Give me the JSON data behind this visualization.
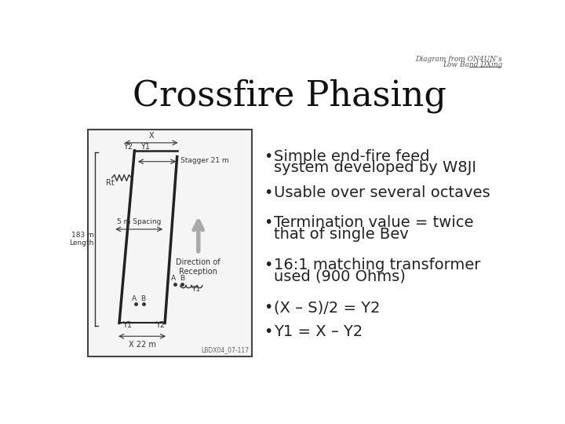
{
  "title": "Crossfire Phasing",
  "title_fontsize": 32,
  "title_font": "serif",
  "background_color": "#ffffff",
  "top_right_line1": "Diagram from ON4UN’s",
  "top_right_line2": "Low Band DXing",
  "bullet_lines": [
    [
      "Simple end-fire feed",
      "system developed by W8JI"
    ],
    [
      "Usable over several octaves"
    ],
    [
      "Termination value = twice",
      "that of single Bev"
    ],
    [
      "16:1 matching transformer",
      "used (900 Ohms)"
    ],
    [
      "(X – S)/2 = Y2"
    ],
    [
      "Y1 = X – Y2"
    ]
  ],
  "bullet_fontsize": 14,
  "bullet_color": "#222222",
  "text_color": "#333333",
  "arrow_color": "#aaaaaa",
  "y_positions": [
    162,
    222,
    272,
    342,
    412,
    452
  ]
}
